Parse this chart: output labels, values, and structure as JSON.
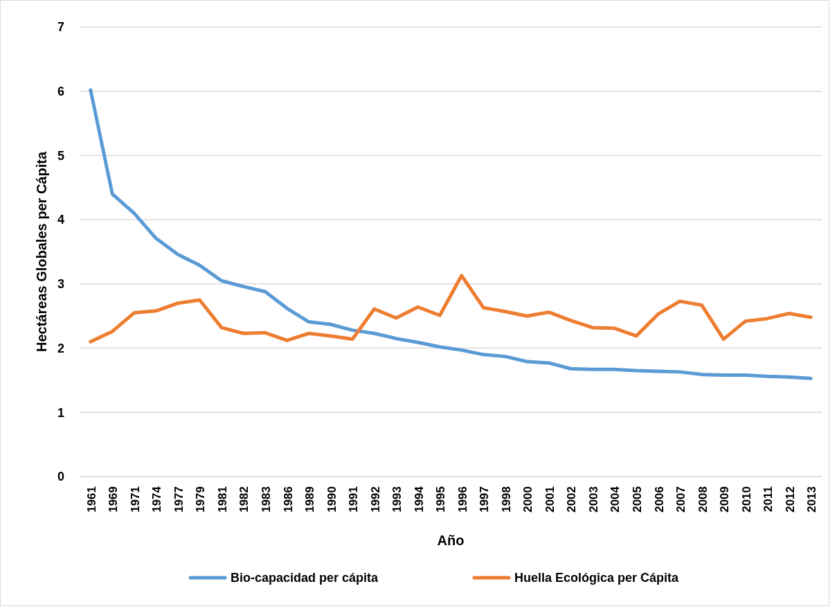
{
  "chart_data": {
    "type": "line",
    "xlabel": "Año",
    "ylabel": "Hectáreas Globales per Cápita",
    "categories": [
      "1961",
      "1969",
      "1971",
      "1974",
      "1977",
      "1979",
      "1981",
      "1982",
      "1983",
      "1986",
      "1989",
      "1990",
      "1991",
      "1992",
      "1993",
      "1994",
      "1995",
      "1996",
      "1997",
      "1998",
      "2000",
      "2001",
      "2002",
      "2003",
      "2004",
      "2005",
      "2006",
      "2007",
      "2008",
      "2009",
      "2010",
      "2011",
      "2012",
      "2013"
    ],
    "series": [
      {
        "name": "Bio-capacidad per cápita",
        "color": "#5b9bd5",
        "values": [
          6.02,
          4.4,
          4.1,
          3.71,
          3.46,
          3.29,
          3.05,
          2.96,
          2.88,
          2.62,
          2.41,
          2.37,
          2.28,
          2.23,
          2.15,
          2.09,
          2.02,
          1.97,
          1.9,
          1.87,
          1.79,
          1.77,
          1.68,
          1.67,
          1.67,
          1.65,
          1.64,
          1.63,
          1.59,
          1.58,
          1.58,
          1.56,
          1.55,
          1.53
        ]
      },
      {
        "name": "Huella Ecológica per Cápita",
        "color": "#ed7d31",
        "values": [
          2.1,
          2.26,
          2.55,
          2.58,
          2.7,
          2.75,
          2.32,
          2.23,
          2.24,
          2.12,
          2.23,
          2.19,
          2.14,
          2.61,
          2.47,
          2.64,
          2.51,
          3.13,
          2.63,
          2.57,
          2.5,
          2.56,
          2.43,
          2.32,
          2.31,
          2.19,
          2.53,
          2.73,
          2.67,
          2.14,
          2.42,
          2.46,
          2.54,
          2.48
        ]
      }
    ],
    "ylim": [
      0,
      7
    ],
    "yticks": [
      0,
      1,
      2,
      3,
      4,
      5,
      6,
      7
    ],
    "grid": "y",
    "legend": "bottom",
    "marker": "none",
    "line_style": "solid"
  }
}
